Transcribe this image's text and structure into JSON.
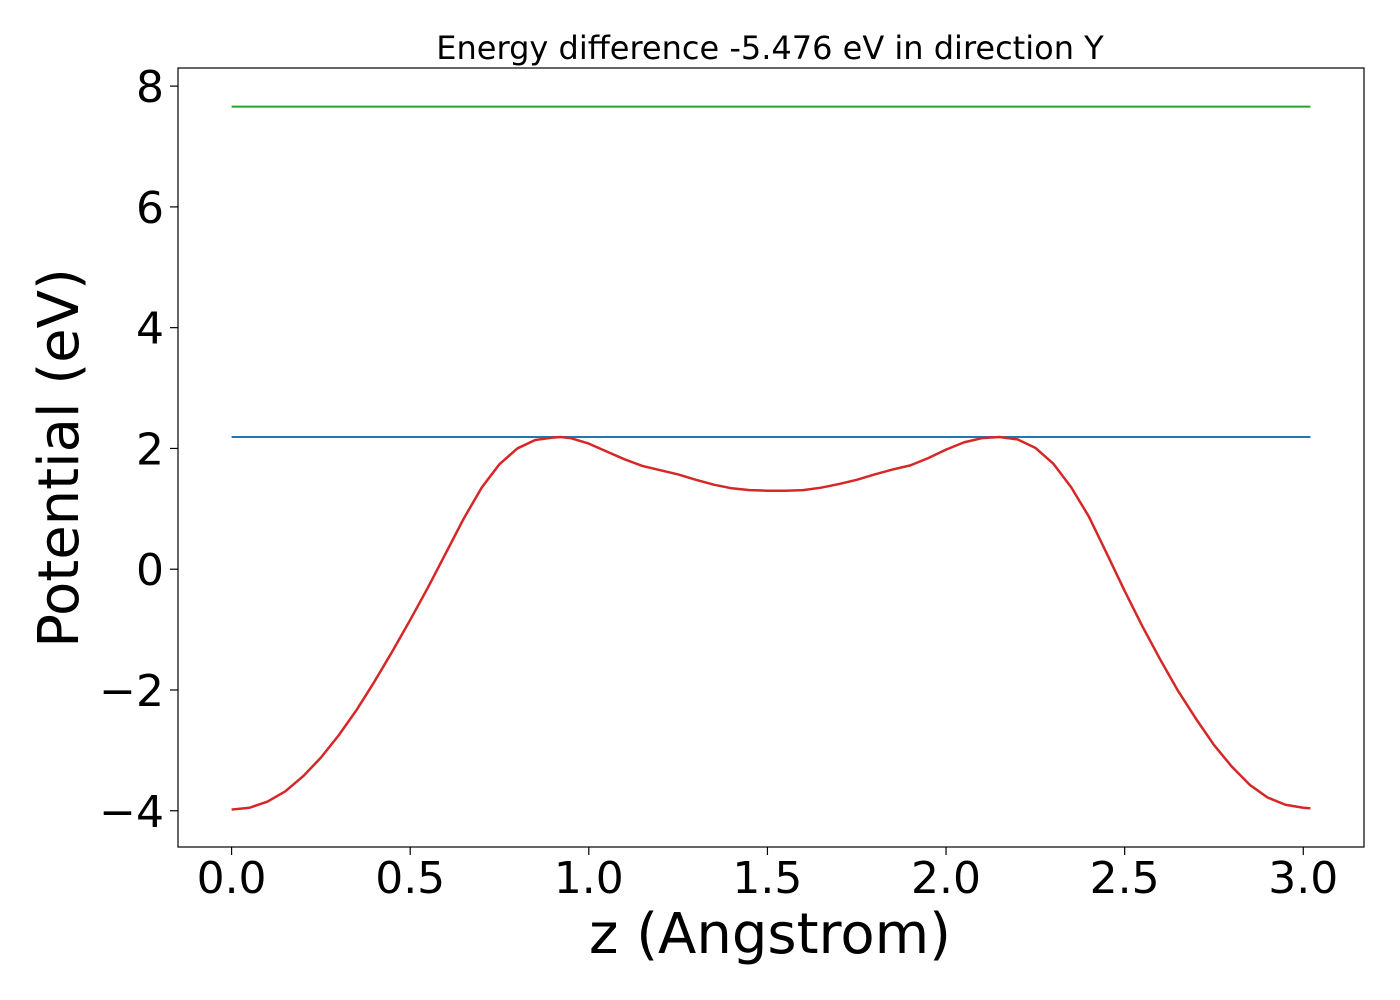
{
  "chart_data": {
    "type": "line",
    "title": "Energy difference -5.476 eV in direction Y",
    "xlabel": "z (Angstrom)",
    "ylabel": "Potential (eV)",
    "xlim": [
      -0.15,
      3.17
    ],
    "ylim": [
      -4.6,
      8.3
    ],
    "grid": false,
    "xticks": [
      0.0,
      0.5,
      1.0,
      1.5,
      2.0,
      2.5,
      3.0
    ],
    "xtick_labels": [
      "0.0",
      "0.5",
      "1.0",
      "1.5",
      "2.0",
      "2.5",
      "3.0"
    ],
    "yticks": [
      -4,
      -2,
      0,
      2,
      4,
      6,
      8
    ],
    "ytick_labels": [
      "−4",
      "−2",
      "0",
      "2",
      "4",
      "6",
      "8"
    ],
    "series": [
      {
        "type": "hline",
        "color": "#2ca02c",
        "y": 7.66,
        "x": [
          0.0,
          3.02
        ]
      },
      {
        "type": "hline",
        "color": "#1f77b4",
        "y": 2.19,
        "x": [
          0.0,
          3.02
        ]
      },
      {
        "type": "line",
        "color": "#d62728",
        "x": [
          0.0,
          0.05,
          0.1,
          0.15,
          0.2,
          0.25,
          0.3,
          0.35,
          0.4,
          0.45,
          0.5,
          0.55,
          0.6,
          0.65,
          0.7,
          0.75,
          0.8,
          0.85,
          0.9,
          0.92,
          0.95,
          1.0,
          1.05,
          1.1,
          1.15,
          1.2,
          1.25,
          1.3,
          1.35,
          1.4,
          1.45,
          1.5,
          1.55,
          1.6,
          1.65,
          1.7,
          1.75,
          1.8,
          1.85,
          1.9,
          1.95,
          2.0,
          2.05,
          2.1,
          2.15,
          2.2,
          2.25,
          2.3,
          2.35,
          2.4,
          2.45,
          2.5,
          2.55,
          2.6,
          2.65,
          2.7,
          2.75,
          2.8,
          2.85,
          2.9,
          2.95,
          3.0,
          3.02
        ],
        "y": [
          -3.98,
          -3.95,
          -3.85,
          -3.68,
          -3.43,
          -3.12,
          -2.75,
          -2.33,
          -1.86,
          -1.36,
          -0.84,
          -0.3,
          0.27,
          0.84,
          1.35,
          1.74,
          2.0,
          2.14,
          2.18,
          2.19,
          2.17,
          2.08,
          1.95,
          1.82,
          1.71,
          1.64,
          1.57,
          1.48,
          1.4,
          1.34,
          1.31,
          1.3,
          1.3,
          1.31,
          1.35,
          1.41,
          1.48,
          1.57,
          1.65,
          1.72,
          1.84,
          1.98,
          2.1,
          2.17,
          2.19,
          2.15,
          2.01,
          1.75,
          1.36,
          0.87,
          0.26,
          -0.36,
          -0.95,
          -1.5,
          -2.02,
          -2.48,
          -2.91,
          -3.27,
          -3.57,
          -3.78,
          -3.9,
          -3.95,
          -3.96
        ]
      }
    ]
  }
}
